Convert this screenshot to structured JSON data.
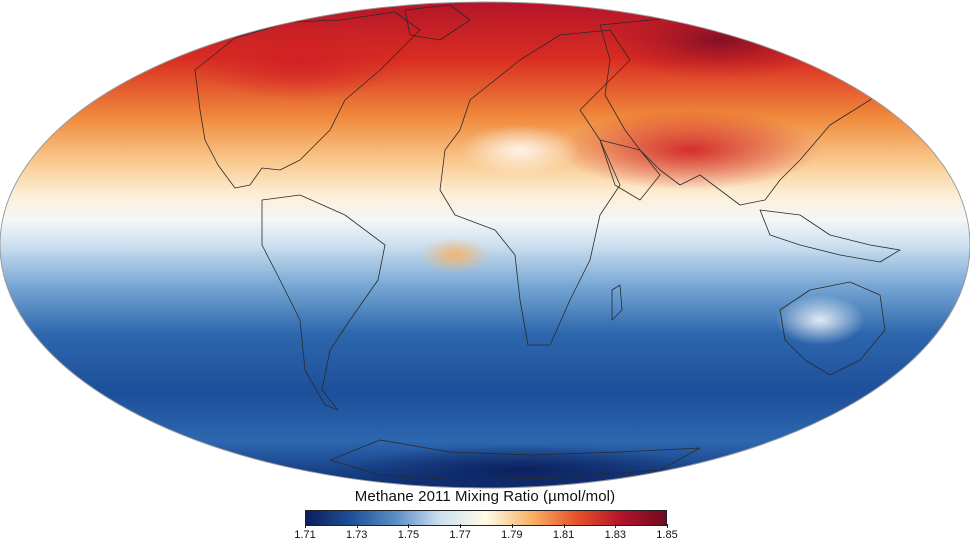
{
  "map": {
    "projection": "mollweide",
    "ocean_background": "#ffffff",
    "outline_color": "#888888"
  },
  "legend": {
    "title": "Methane 2011 Mixing Ratio (µmol/mol)",
    "ticks": [
      "1.71",
      "1.73",
      "1.75",
      "1.77",
      "1.79",
      "1.81",
      "1.83",
      "1.85"
    ],
    "range": [
      1.71,
      1.85
    ],
    "colorscale": [
      "#0b1f5c",
      "#1f4e99",
      "#5b8ec6",
      "#cfe1ef",
      "#fffbe6",
      "#f7b366",
      "#e8532a",
      "#b3142a",
      "#6e0c1f"
    ]
  }
}
